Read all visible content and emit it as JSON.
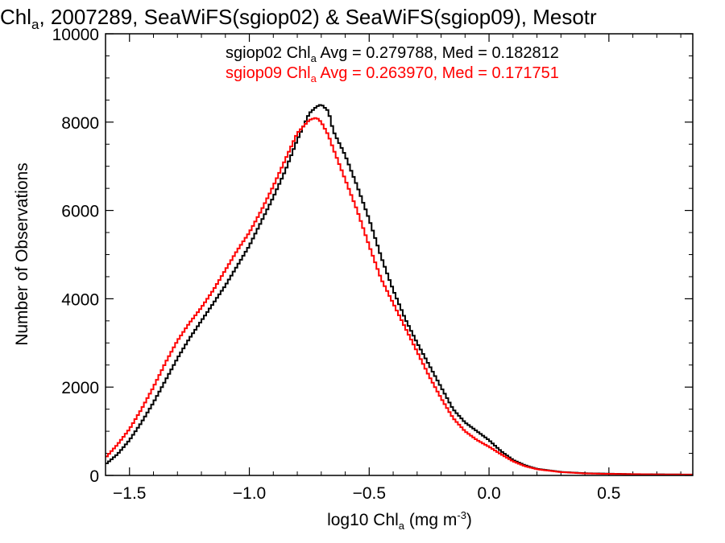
{
  "chart_data": {
    "type": "line",
    "title": {
      "pre": "Chl",
      "sub": "a",
      "post": ", 2007289, SeaWiFS(sgiop02) & SeaWiFS(sgiop09), Mesotr"
    },
    "xlabel": {
      "pre": "log10 Chl",
      "sub": "a",
      "post": " (mg m",
      "sup": "-3",
      "end": ")"
    },
    "ylabel": "Number of Observations",
    "xlim": [
      -1.6,
      0.85
    ],
    "ylim": [
      0,
      10000
    ],
    "xticks": [
      -1.5,
      -1.0,
      -0.5,
      0.0,
      0.5
    ],
    "xtick_labels": [
      "−1.5",
      "−1.0",
      "−0.5",
      "0.0",
      "0.5"
    ],
    "yticks": [
      0,
      2000,
      4000,
      6000,
      8000,
      10000
    ],
    "ytick_labels": [
      "0",
      "2000",
      "4000",
      "6000",
      "8000",
      "10000"
    ],
    "grid": false,
    "legend_position": "top-center",
    "series": [
      {
        "color": "#000000",
        "legend": {
          "pre": "sgiop02 Chl",
          "sub": "a",
          "post": " Avg = 0.279788, Med = 0.182812"
        },
        "points": [
          [
            -1.6,
            250
          ],
          [
            -1.55,
            480
          ],
          [
            -1.5,
            800
          ],
          [
            -1.45,
            1200
          ],
          [
            -1.4,
            1650
          ],
          [
            -1.35,
            2150
          ],
          [
            -1.3,
            2650
          ],
          [
            -1.25,
            3100
          ],
          [
            -1.2,
            3500
          ],
          [
            -1.15,
            3900
          ],
          [
            -1.1,
            4300
          ],
          [
            -1.05,
            4750
          ],
          [
            -1.0,
            5200
          ],
          [
            -0.95,
            5750
          ],
          [
            -0.9,
            6300
          ],
          [
            -0.85,
            6900
          ],
          [
            -0.8,
            7600
          ],
          [
            -0.75,
            8200
          ],
          [
            -0.72,
            8350
          ],
          [
            -0.7,
            8400
          ],
          [
            -0.67,
            8250
          ],
          [
            -0.65,
            7800
          ],
          [
            -0.6,
            7250
          ],
          [
            -0.55,
            6550
          ],
          [
            -0.5,
            5800
          ],
          [
            -0.45,
            4950
          ],
          [
            -0.4,
            4200
          ],
          [
            -0.35,
            3550
          ],
          [
            -0.3,
            3000
          ],
          [
            -0.25,
            2500
          ],
          [
            -0.2,
            2000
          ],
          [
            -0.15,
            1500
          ],
          [
            -0.1,
            1200
          ],
          [
            -0.05,
            1000
          ],
          [
            0.0,
            800
          ],
          [
            0.05,
            550
          ],
          [
            0.1,
            350
          ],
          [
            0.15,
            230
          ],
          [
            0.2,
            150
          ],
          [
            0.3,
            80
          ],
          [
            0.4,
            50
          ],
          [
            0.5,
            40
          ],
          [
            0.6,
            30
          ],
          [
            0.7,
            25
          ],
          [
            0.85,
            20
          ]
        ]
      },
      {
        "color": "#ff0000",
        "legend": {
          "pre": "sgiop09 Chl",
          "sub": "a",
          "post": " Avg = 0.263970, Med = 0.171751"
        },
        "points": [
          [
            -1.6,
            400
          ],
          [
            -1.55,
            700
          ],
          [
            -1.5,
            1050
          ],
          [
            -1.45,
            1500
          ],
          [
            -1.4,
            2000
          ],
          [
            -1.35,
            2550
          ],
          [
            -1.3,
            3050
          ],
          [
            -1.25,
            3450
          ],
          [
            -1.2,
            3800
          ],
          [
            -1.15,
            4200
          ],
          [
            -1.1,
            4650
          ],
          [
            -1.05,
            5100
          ],
          [
            -1.0,
            5500
          ],
          [
            -0.95,
            6000
          ],
          [
            -0.9,
            6550
          ],
          [
            -0.85,
            7150
          ],
          [
            -0.8,
            7750
          ],
          [
            -0.75,
            8050
          ],
          [
            -0.72,
            8100
          ],
          [
            -0.7,
            8000
          ],
          [
            -0.67,
            7700
          ],
          [
            -0.65,
            7400
          ],
          [
            -0.6,
            6700
          ],
          [
            -0.55,
            6000
          ],
          [
            -0.5,
            5200
          ],
          [
            -0.45,
            4450
          ],
          [
            -0.4,
            3900
          ],
          [
            -0.35,
            3350
          ],
          [
            -0.3,
            2800
          ],
          [
            -0.25,
            2250
          ],
          [
            -0.2,
            1750
          ],
          [
            -0.15,
            1300
          ],
          [
            -0.1,
            1000
          ],
          [
            -0.05,
            800
          ],
          [
            0.0,
            650
          ],
          [
            0.05,
            480
          ],
          [
            0.1,
            320
          ],
          [
            0.15,
            210
          ],
          [
            0.2,
            140
          ],
          [
            0.3,
            75
          ],
          [
            0.4,
            45
          ],
          [
            0.5,
            35
          ],
          [
            0.6,
            28
          ],
          [
            0.7,
            22
          ],
          [
            0.85,
            18
          ]
        ]
      }
    ]
  }
}
